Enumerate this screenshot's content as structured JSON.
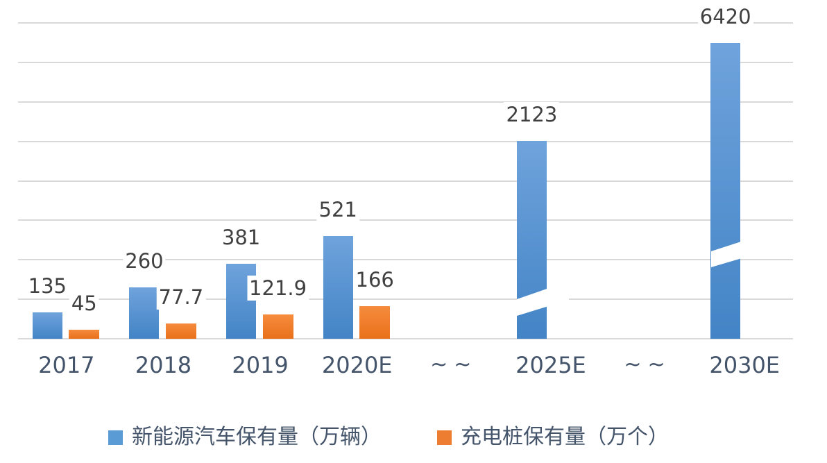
{
  "chart_data": {
    "type": "bar",
    "title": "",
    "xlabel": "",
    "ylabel": "",
    "categories": [
      "2017",
      "2018",
      "2019",
      "2020E",
      "~~",
      "2025E",
      "~~",
      "2030E"
    ],
    "series": [
      {
        "name": "新能源汽车保有量（万辆）",
        "color": "#5B9BD5",
        "gradient_top": "#6FA3DC",
        "gradient_bottom": "#4384C6",
        "values": [
          135,
          260,
          381,
          521,
          null,
          2123,
          null,
          6420
        ],
        "labels": [
          "135",
          "260",
          "381",
          "521",
          "",
          "2123",
          "",
          "6420"
        ]
      },
      {
        "name": "充电桩保有量（万个）",
        "color": "#ED7D31",
        "gradient_top": "#F68C3E",
        "gradient_bottom": "#E9701A",
        "values": [
          45,
          77.7,
          121.9,
          166,
          null,
          null,
          null,
          null
        ],
        "labels": [
          "45",
          "77.7",
          "121.9",
          "166",
          "",
          "",
          "",
          ""
        ]
      }
    ],
    "y_axis": {
      "labels_visible": false,
      "min": 0,
      "units_per_gridline": 200,
      "gridline_count": 9,
      "top_gridline_value": 1600
    },
    "axis_break": {
      "broken_bar_categories": [
        "2025E",
        "2030E"
      ],
      "separator_label": "~~",
      "style": "diagonal-white-slash"
    },
    "grid": {
      "show": true,
      "color": "#D9D9D9"
    },
    "legend_position": "bottom",
    "text_colors": {
      "data_label": "#404040",
      "axis_label": "#44546A",
      "legend_label": "#44546A"
    },
    "background": "#FFFFFF"
  }
}
